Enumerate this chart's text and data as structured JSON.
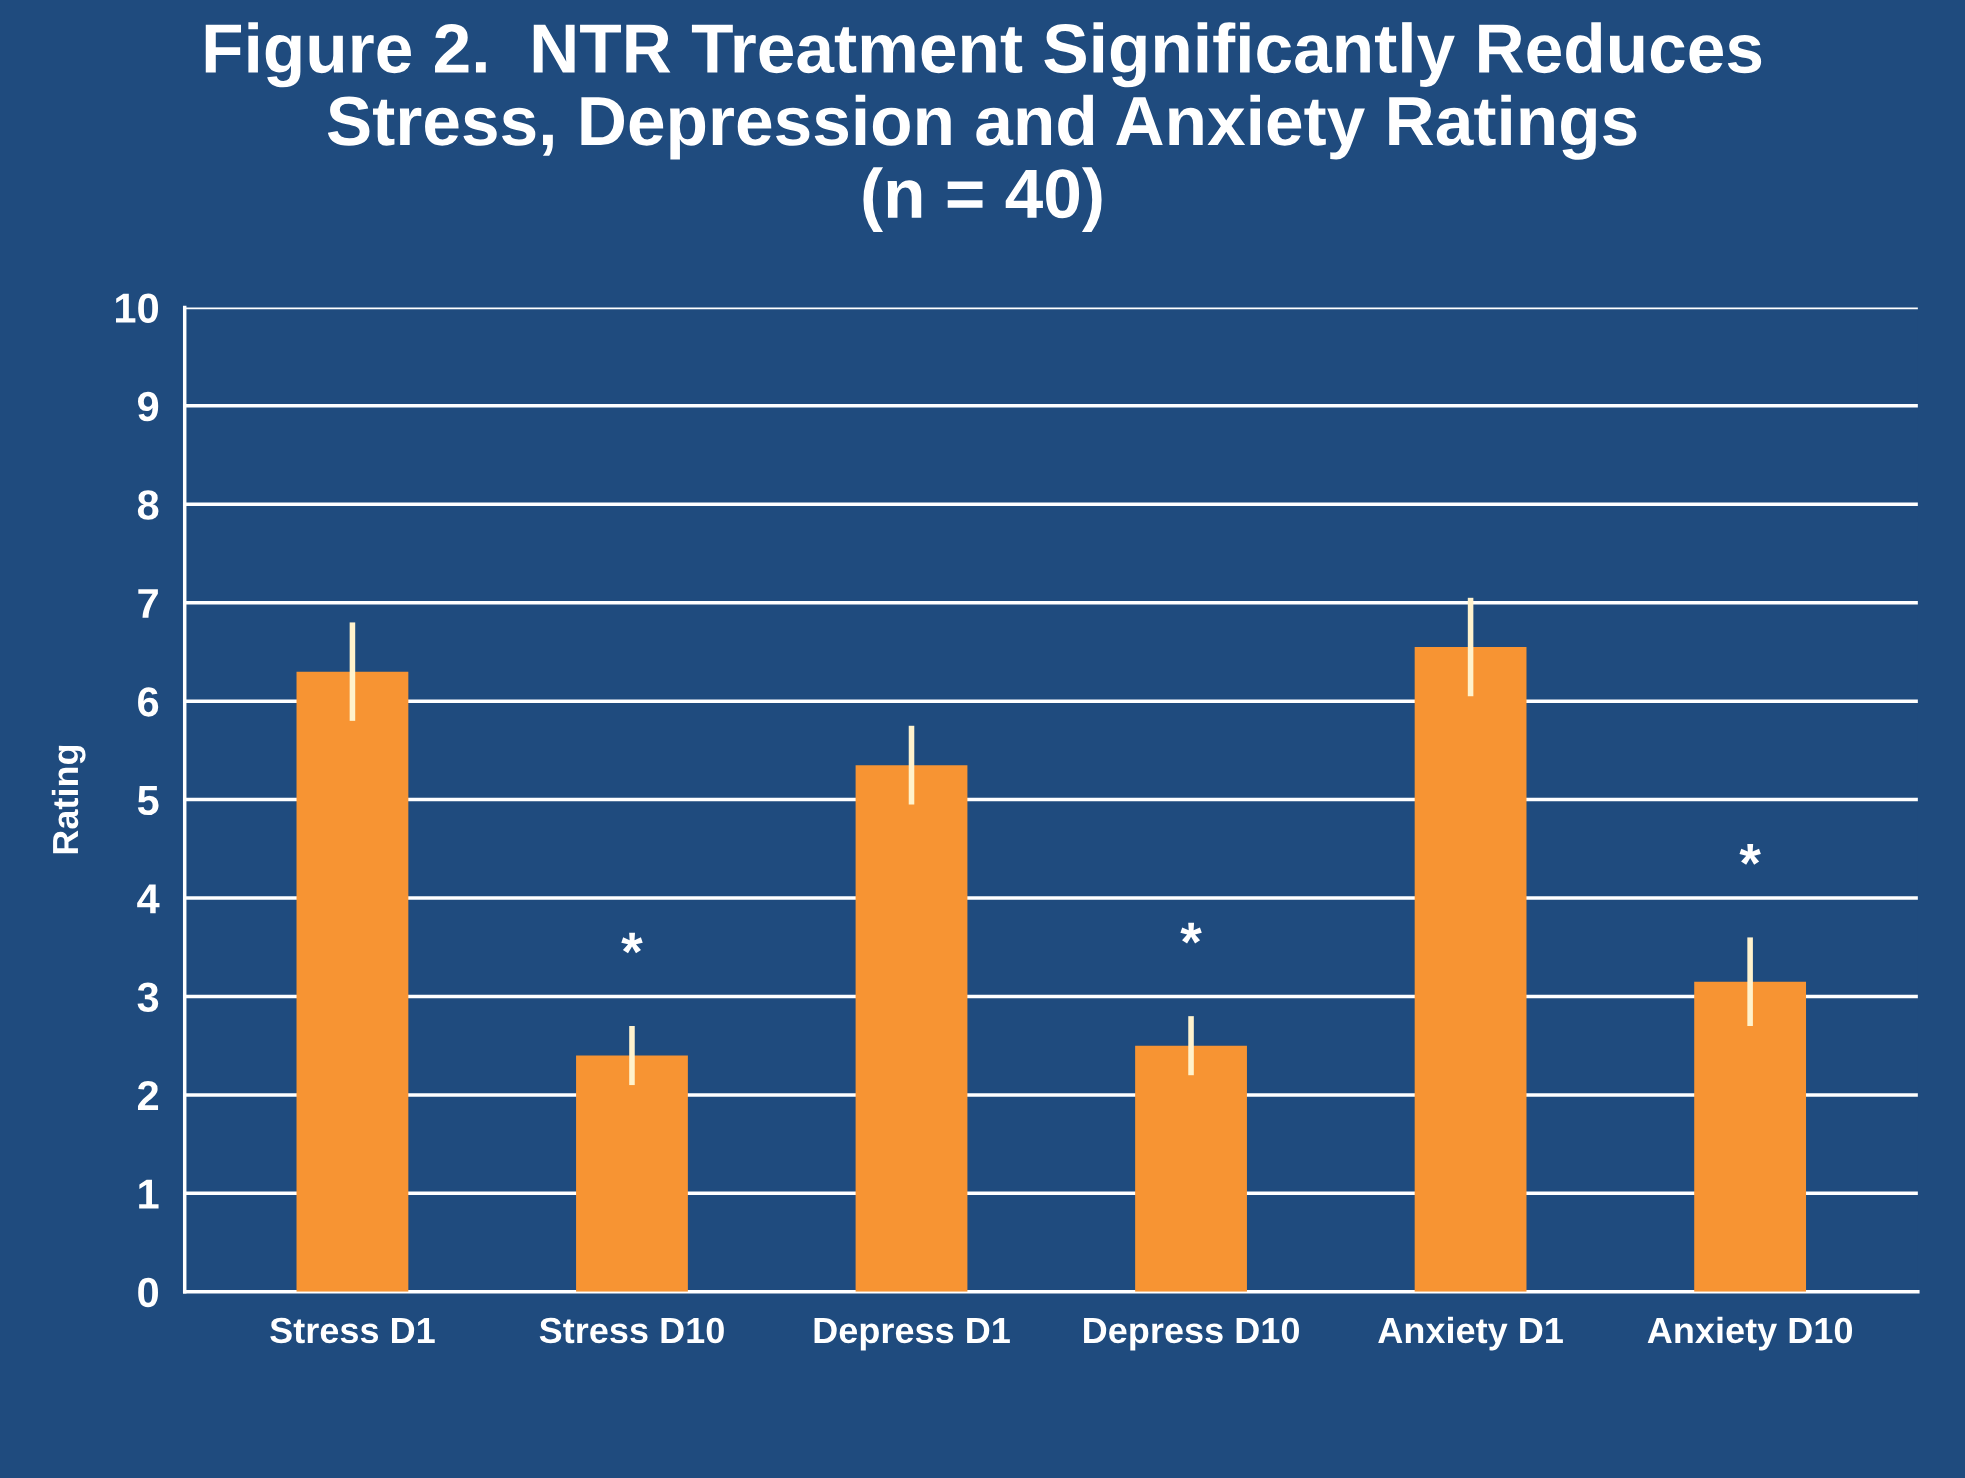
{
  "chart_data": {
    "type": "bar",
    "title": "Figure 2.  NTR Treatment Significantly Reduces\nStress, Depression and Anxiety Ratings\n(n = 40)",
    "ylabel": "Rating",
    "categories": [
      "Stress D1",
      "Stress D10",
      "Depress D1",
      "Depress D10",
      "Anxiety D1",
      "Anxiety D10"
    ],
    "values": [
      6.3,
      2.4,
      5.35,
      2.5,
      6.55,
      3.15
    ],
    "errors": [
      0.5,
      0.3,
      0.4,
      0.3,
      0.5,
      0.45
    ],
    "color": "#f79433",
    "ylim": [
      0,
      10
    ],
    "yticks": [
      0,
      1,
      2,
      3,
      4,
      5,
      6,
      7,
      8,
      9,
      10
    ],
    "grid": "y",
    "value_labels": [
      null,
      "*",
      null,
      "*",
      null,
      "*"
    ]
  }
}
